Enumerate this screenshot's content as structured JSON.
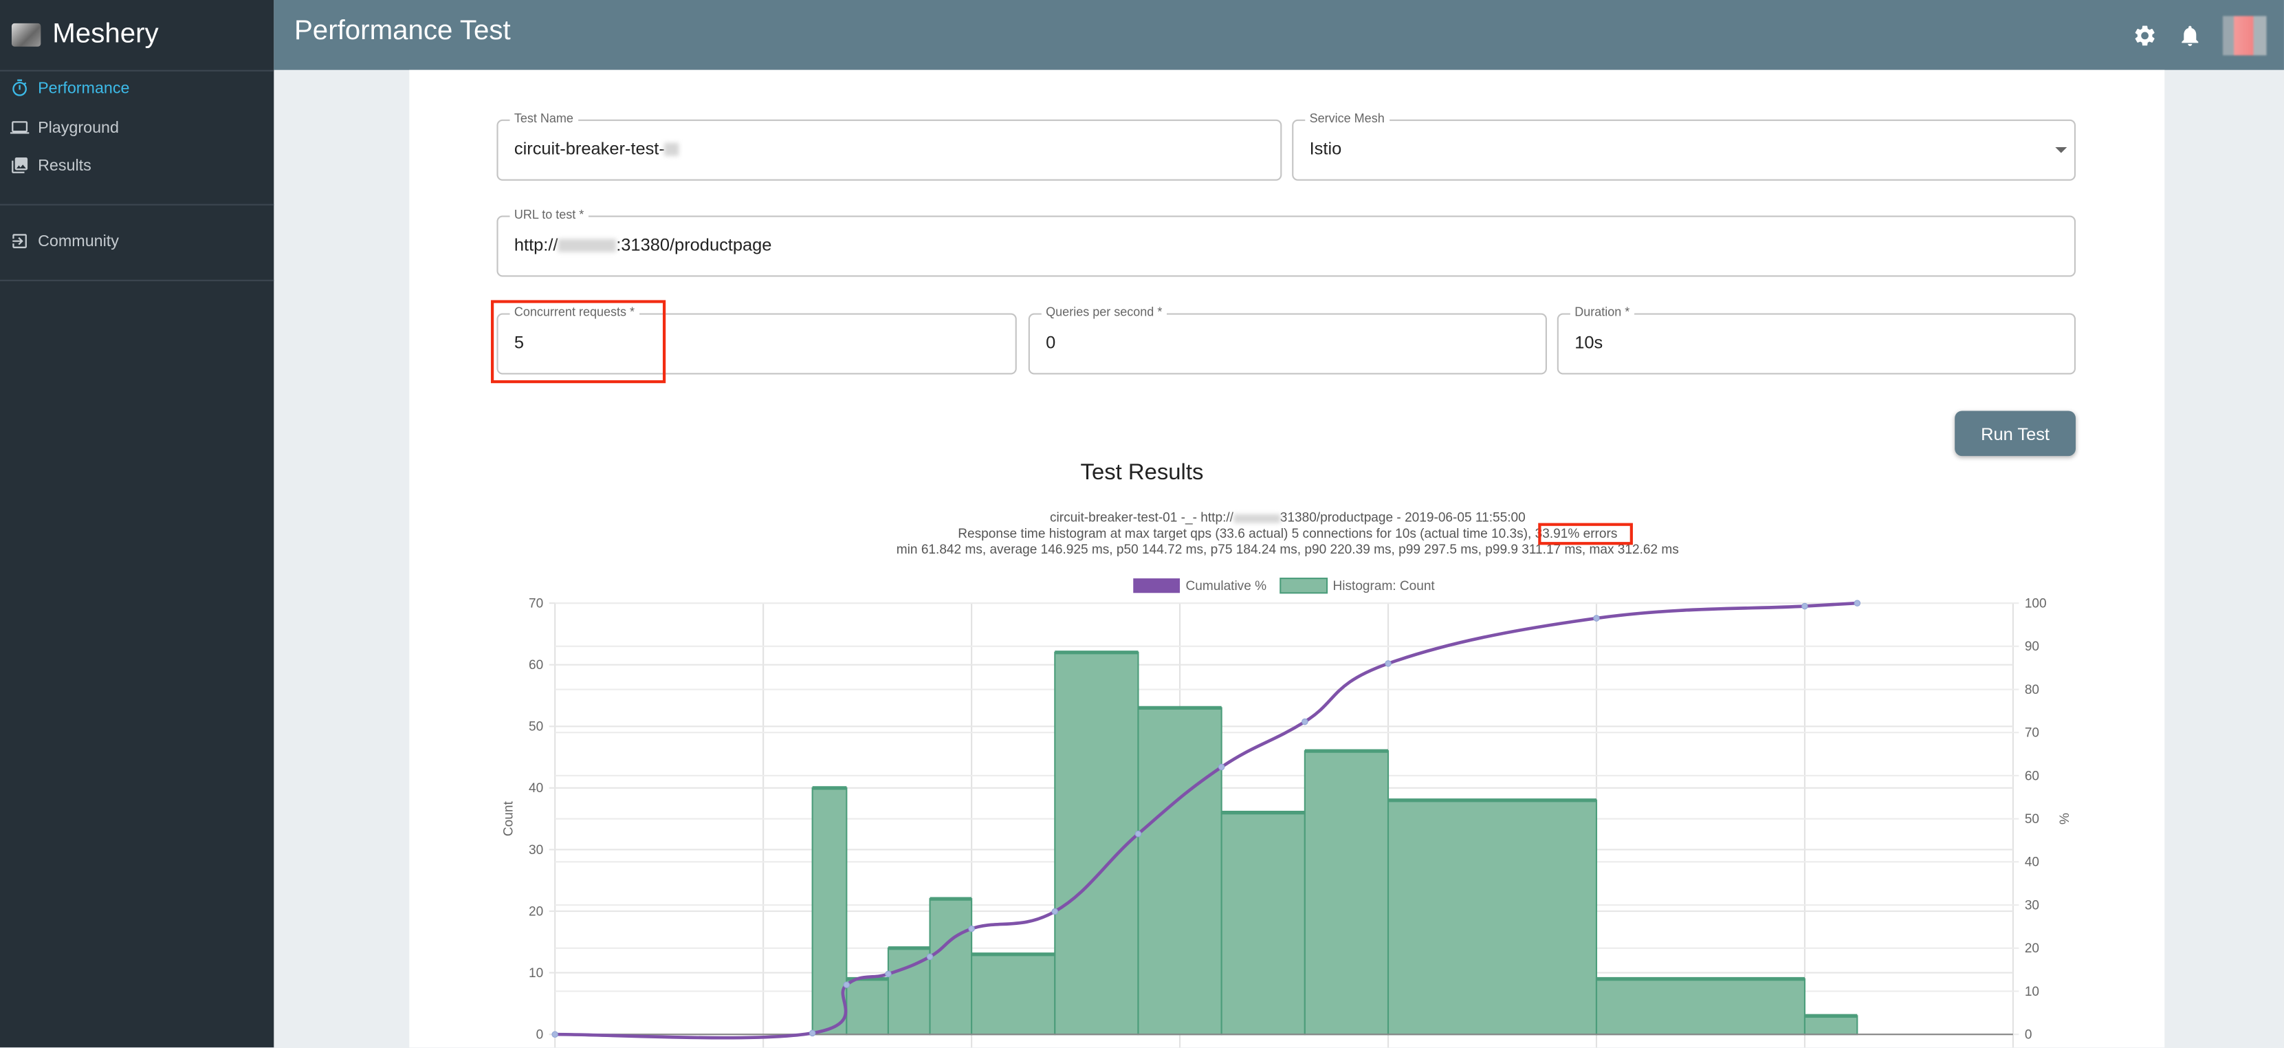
{
  "app": {
    "name": "Meshery"
  },
  "sidebar": {
    "items": [
      {
        "label": "Performance",
        "icon": "timer-icon",
        "active": true
      },
      {
        "label": "Playground",
        "icon": "laptop-icon"
      },
      {
        "label": "Results",
        "icon": "photo-library-icon"
      },
      {
        "label": "Community",
        "icon": "exit-to-app-icon"
      }
    ]
  },
  "header": {
    "title": "Performance Test",
    "icons": [
      "settings-icon",
      "notifications-icon",
      "avatar"
    ]
  },
  "form": {
    "test_name": {
      "label": "Test Name",
      "value": "circuit-breaker-test-"
    },
    "service_mesh": {
      "label": "Service Mesh",
      "value": "Istio"
    },
    "url": {
      "label": "URL to test *",
      "value_prefix": "http://",
      "value_suffix": ":31380/productpage"
    },
    "concurrent": {
      "label": "Concurrent requests *",
      "value": "5"
    },
    "qps": {
      "label": "Queries per second *",
      "value": "0"
    },
    "duration": {
      "label": "Duration *",
      "value": "10s"
    },
    "run_label": "Run Test"
  },
  "results": {
    "title": "Test Results",
    "line1_prefix": "circuit-breaker-test-01 -_- http://",
    "line1_suffix": "31380/productpage - 2019-06-05 11:55:00",
    "line2_prefix": "Response time histogram at max target qps (33.6 actual) 5 connections for 10s (actual time 10.3s), ",
    "line2_errors": "33.91% errors",
    "line3": "min 61.842 ms, average 146.925 ms, p50 144.72 ms, p75 184.24 ms, p90 220.39 ms, p99 297.5 ms, p99.9 311.17 ms, max 312.62 ms"
  },
  "colors": {
    "accent": "#3dbbe9",
    "header": "#607d8b",
    "sidebar": "#263038",
    "cumulative": "#7f52a9",
    "histogram": "#85bca2",
    "histogram_border": "#4c9d7b",
    "highlight": "#f22c12"
  },
  "chart_data": {
    "type": "bar+line",
    "legend": [
      "Cumulative %",
      "Histogram: Count"
    ],
    "legend_position": "top",
    "ylabel": "Count",
    "y2label": "%",
    "xlim": [
      0,
      350
    ],
    "ylim": [
      0,
      70
    ],
    "y2lim": [
      0,
      100
    ],
    "yticks": [
      0,
      10,
      20,
      30,
      40,
      50,
      60,
      70
    ],
    "y2ticks": [
      0,
      10,
      20,
      30,
      40,
      50,
      60,
      70,
      80,
      90,
      100
    ],
    "grid": true,
    "histogram": {
      "name": "Histogram: Count",
      "bin_start": [
        61.8,
        70,
        80,
        90,
        100,
        120,
        140,
        160,
        180,
        200,
        250,
        300
      ],
      "bin_end": [
        70,
        80,
        90,
        100,
        120,
        140,
        160,
        180,
        200,
        250,
        300,
        312.6
      ],
      "counts": [
        40,
        9,
        14,
        22,
        13,
        62,
        53,
        36,
        46,
        38,
        9,
        3
      ]
    },
    "cumulative": {
      "name": "Cumulative %",
      "x": [
        0,
        61.8,
        70,
        80,
        90,
        100,
        120,
        140,
        160,
        180,
        200,
        250,
        300,
        312.6
      ],
      "y": [
        0,
        0.3,
        11.5,
        14,
        18,
        24.5,
        28.5,
        46.5,
        62,
        72.5,
        86,
        96.5,
        99.3,
        100
      ]
    }
  }
}
